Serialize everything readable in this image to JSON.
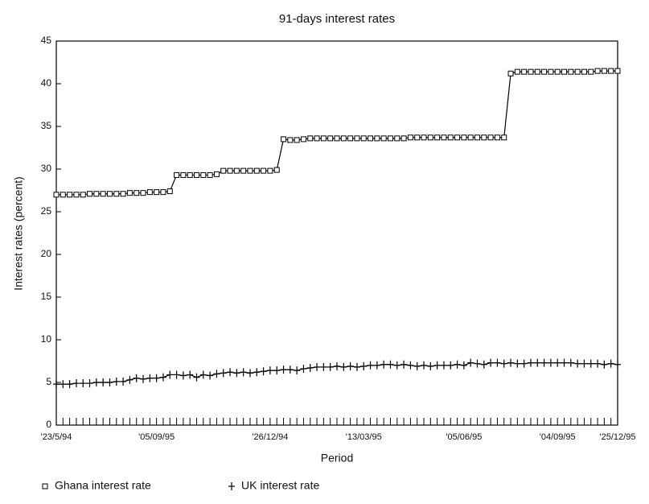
{
  "chart_data": {
    "type": "line",
    "title": "91-days interest rates",
    "x_label": "Period",
    "y_label": "Interest rates (percent)",
    "categories": [
      "'23/5/94",
      null,
      null,
      null,
      null,
      null,
      null,
      null,
      null,
      null,
      null,
      null,
      null,
      null,
      null,
      "'05/09/95",
      null,
      null,
      null,
      null,
      null,
      null,
      null,
      null,
      null,
      null,
      null,
      null,
      null,
      null,
      null,
      null,
      "'26/12/94",
      null,
      null,
      null,
      null,
      null,
      null,
      null,
      null,
      null,
      null,
      null,
      null,
      null,
      "'13/03/95",
      null,
      null,
      null,
      null,
      null,
      null,
      null,
      null,
      null,
      null,
      null,
      null,
      null,
      null,
      "'05/06/95",
      null,
      null,
      null,
      null,
      null,
      null,
      null,
      null,
      null,
      null,
      null,
      null,
      null,
      "'04/09/95",
      null,
      null,
      null,
      null,
      null,
      null,
      null,
      null,
      "'25/12/95"
    ],
    "series": [
      {
        "name": "Ghana interest rate",
        "color": "#000000",
        "marker": "square",
        "values": [
          27.0,
          27.0,
          27.0,
          27.0,
          27.0,
          27.1,
          27.1,
          27.1,
          27.1,
          27.1,
          27.1,
          27.2,
          27.2,
          27.2,
          27.3,
          27.3,
          27.3,
          27.4,
          29.3,
          29.3,
          29.3,
          29.3,
          29.3,
          29.3,
          29.4,
          29.8,
          29.8,
          29.8,
          29.8,
          29.8,
          29.8,
          29.8,
          29.8,
          29.9,
          33.5,
          33.4,
          33.4,
          33.5,
          33.6,
          33.6,
          33.6,
          33.6,
          33.6,
          33.6,
          33.6,
          33.6,
          33.6,
          33.6,
          33.6,
          33.6,
          33.6,
          33.6,
          33.6,
          33.7,
          33.7,
          33.7,
          33.7,
          33.7,
          33.7,
          33.7,
          33.7,
          33.7,
          33.7,
          33.7,
          33.7,
          33.7,
          33.7,
          33.7,
          41.2,
          41.4,
          41.4,
          41.4,
          41.4,
          41.4,
          41.4,
          41.4,
          41.4,
          41.4,
          41.4,
          41.4,
          41.4,
          41.5,
          41.5,
          41.5,
          41.5
        ]
      },
      {
        "name": "UK interest rate",
        "color": "#000000",
        "marker": "plus",
        "values": [
          4.8,
          4.8,
          4.8,
          4.9,
          4.9,
          4.9,
          5.0,
          5.0,
          5.0,
          5.1,
          5.1,
          5.3,
          5.5,
          5.4,
          5.5,
          5.5,
          5.6,
          5.9,
          5.9,
          5.8,
          5.9,
          5.6,
          5.9,
          5.8,
          6.0,
          6.1,
          6.2,
          6.1,
          6.2,
          6.1,
          6.2,
          6.3,
          6.4,
          6.4,
          6.5,
          6.5,
          6.4,
          6.6,
          6.7,
          6.8,
          6.8,
          6.8,
          6.9,
          6.8,
          6.9,
          6.8,
          6.9,
          7.0,
          7.0,
          7.1,
          7.1,
          7.0,
          7.1,
          7.0,
          6.9,
          7.0,
          6.9,
          7.0,
          7.0,
          7.0,
          7.1,
          7.0,
          7.3,
          7.2,
          7.1,
          7.3,
          7.3,
          7.2,
          7.3,
          7.2,
          7.2,
          7.3,
          7.3,
          7.3,
          7.3,
          7.3,
          7.3,
          7.3,
          7.2,
          7.2,
          7.2,
          7.2,
          7.1,
          7.2,
          7.1
        ]
      }
    ],
    "ylim": [
      0,
      45
    ],
    "yticks": [
      0,
      5,
      10,
      15,
      20,
      25,
      30,
      35,
      40,
      45
    ],
    "grid": false
  }
}
